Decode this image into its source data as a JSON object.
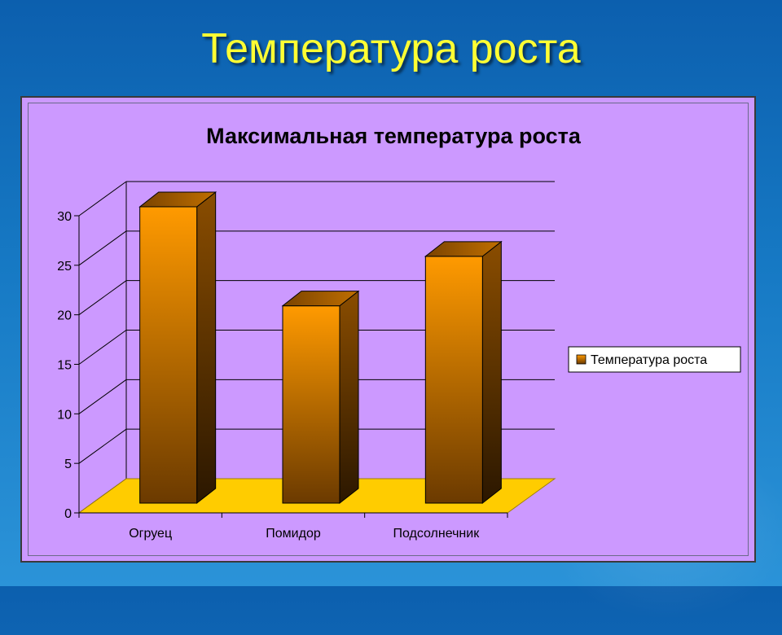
{
  "slide": {
    "title": "Температура роста"
  },
  "colors": {
    "background": "#1670c0",
    "title": "#ffff33",
    "plot_area": "#cc99ff",
    "bar_front_top": "#ff9a00",
    "bar_front_bottom": "#6b3a00",
    "floor": "#ffcc00"
  },
  "chart_data": {
    "type": "bar",
    "title": "Максимальная температура роста",
    "categories": [
      "Огруец",
      "Помидор",
      "Подсолнечник"
    ],
    "series": [
      {
        "name": "Температура роста",
        "values": [
          30,
          20,
          25
        ]
      }
    ],
    "ylim": [
      0,
      30
    ],
    "yticks": [
      0,
      5,
      10,
      15,
      20,
      25,
      30
    ],
    "grid": true,
    "legend": "right",
    "style": "3d-column"
  }
}
